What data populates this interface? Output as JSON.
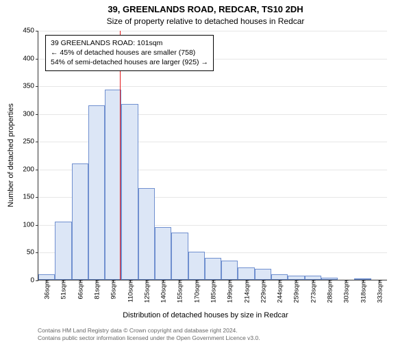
{
  "titles": {
    "main": "39, GREENLANDS ROAD, REDCAR, TS10 2DH",
    "sub": "Size of property relative to detached houses in Redcar"
  },
  "axes": {
    "ylabel": "Number of detached properties",
    "xlabel": "Distribution of detached houses by size in Redcar",
    "ylim": [
      0,
      450
    ],
    "ytick_step": 50,
    "yticks": [
      0,
      50,
      100,
      150,
      200,
      250,
      300,
      350,
      400,
      450
    ],
    "grid_color": "#e6e6e6",
    "axis_color": "#333333"
  },
  "chart": {
    "type": "histogram",
    "background_color": "#ffffff",
    "bar_fill": "#dce6f6",
    "bar_border": "#6f8fcf",
    "bar_width_ratio": 1.0,
    "categories": [
      "36sqm",
      "51sqm",
      "66sqm",
      "81sqm",
      "95sqm",
      "110sqm",
      "125sqm",
      "140sqm",
      "155sqm",
      "170sqm",
      "185sqm",
      "199sqm",
      "214sqm",
      "229sqm",
      "244sqm",
      "259sqm",
      "273sqm",
      "288sqm",
      "303sqm",
      "318sqm",
      "333sqm"
    ],
    "values": [
      10,
      105,
      210,
      315,
      343,
      317,
      165,
      95,
      85,
      50,
      40,
      35,
      22,
      20,
      10,
      8,
      8,
      4,
      0,
      3,
      0
    ]
  },
  "marker": {
    "value_sqm": 101,
    "line_color": "#e41a1c",
    "line_width": 1.5
  },
  "annotation": {
    "line1": "39 GREENLANDS ROAD: 101sqm",
    "line2": "← 45% of detached houses are smaller (758)",
    "line3": "54% of semi-detached houses are larger (925) →",
    "border_color": "#000000",
    "bg_color": "#ffffff",
    "fontsize": 10.5
  },
  "footer": {
    "line1": "Contains HM Land Registry data © Crown copyright and database right 2024.",
    "line2": "Contains public sector information licensed under the Open Government Licence v3.0."
  },
  "style": {
    "title_fontsize": 13,
    "sub_fontsize": 12,
    "label_fontsize": 11,
    "tick_fontsize": 10,
    "footer_fontsize": 8.5,
    "footer_color": "#666666"
  }
}
